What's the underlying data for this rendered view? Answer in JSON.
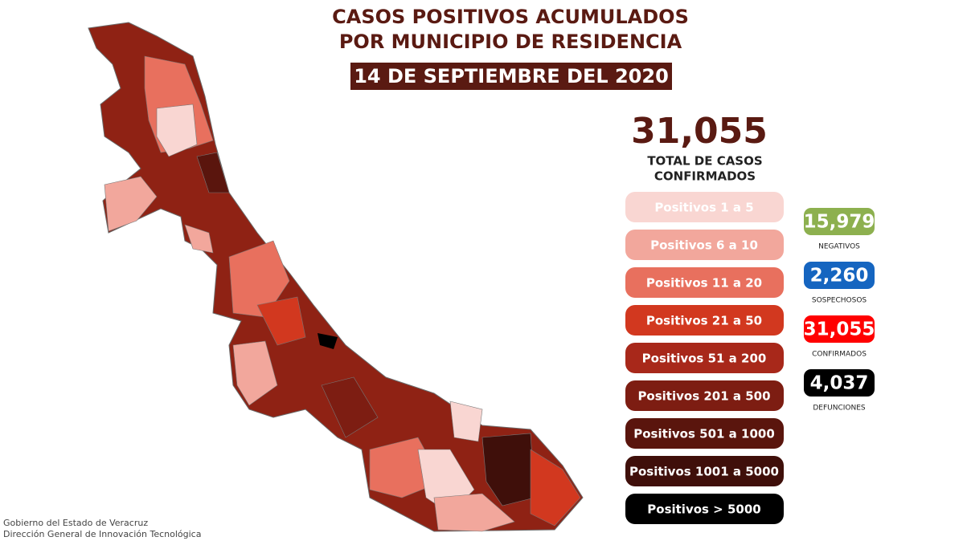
{
  "header": {
    "title_lines": [
      "CASOS POSITIVOS ACUMULADOS",
      "POR MUNICIPIO DE RESIDENCIA"
    ],
    "date": "14 DE SEPTIEMBRE DEL 2020"
  },
  "total": {
    "value": "31,055",
    "label_lines": [
      "TOTAL DE CASOS",
      "CONFIRMADOS"
    ]
  },
  "legend": [
    {
      "label": "Positivos 1 a 5",
      "color": "#f9d6d2",
      "text_color": "#ffffff"
    },
    {
      "label": "Positivos 6 a 10",
      "color": "#f2a79c",
      "text_color": "#ffffff"
    },
    {
      "label": "Positivos 11 a 20",
      "color": "#e8705e",
      "text_color": "#ffffff"
    },
    {
      "label": "Positivos 21 a 50",
      "color": "#d2381f",
      "text_color": "#ffffff"
    },
    {
      "label": "Positivos 51 a 200",
      "color": "#a8281a",
      "text_color": "#ffffff"
    },
    {
      "label": "Positivos 201 a 500",
      "color": "#7d1d12",
      "text_color": "#ffffff"
    },
    {
      "label": "Positivos 501 a 1000",
      "color": "#5a150d",
      "text_color": "#ffffff"
    },
    {
      "label": "Positivos 1001 a 5000",
      "color": "#3f0f0a",
      "text_color": "#ffffff"
    },
    {
      "label": "Positivos > 5000",
      "color": "#000000",
      "text_color": "#ffffff"
    }
  ],
  "stats": [
    {
      "value": "15,979",
      "label": "NEGATIVOS",
      "color": "#8db04f"
    },
    {
      "value": "2,260",
      "label": "SOSPECHOSOS",
      "color": "#1565c0"
    },
    {
      "value": "31,055",
      "label": "CONFIRMADOS",
      "color": "#ff0000"
    },
    {
      "value": "4,037",
      "label": "DEFUNCIONES",
      "color": "#000000"
    }
  ],
  "footer": [
    "Gobierno del Estado de Veracruz",
    "Dirección General de Innovación Tecnológica"
  ]
}
